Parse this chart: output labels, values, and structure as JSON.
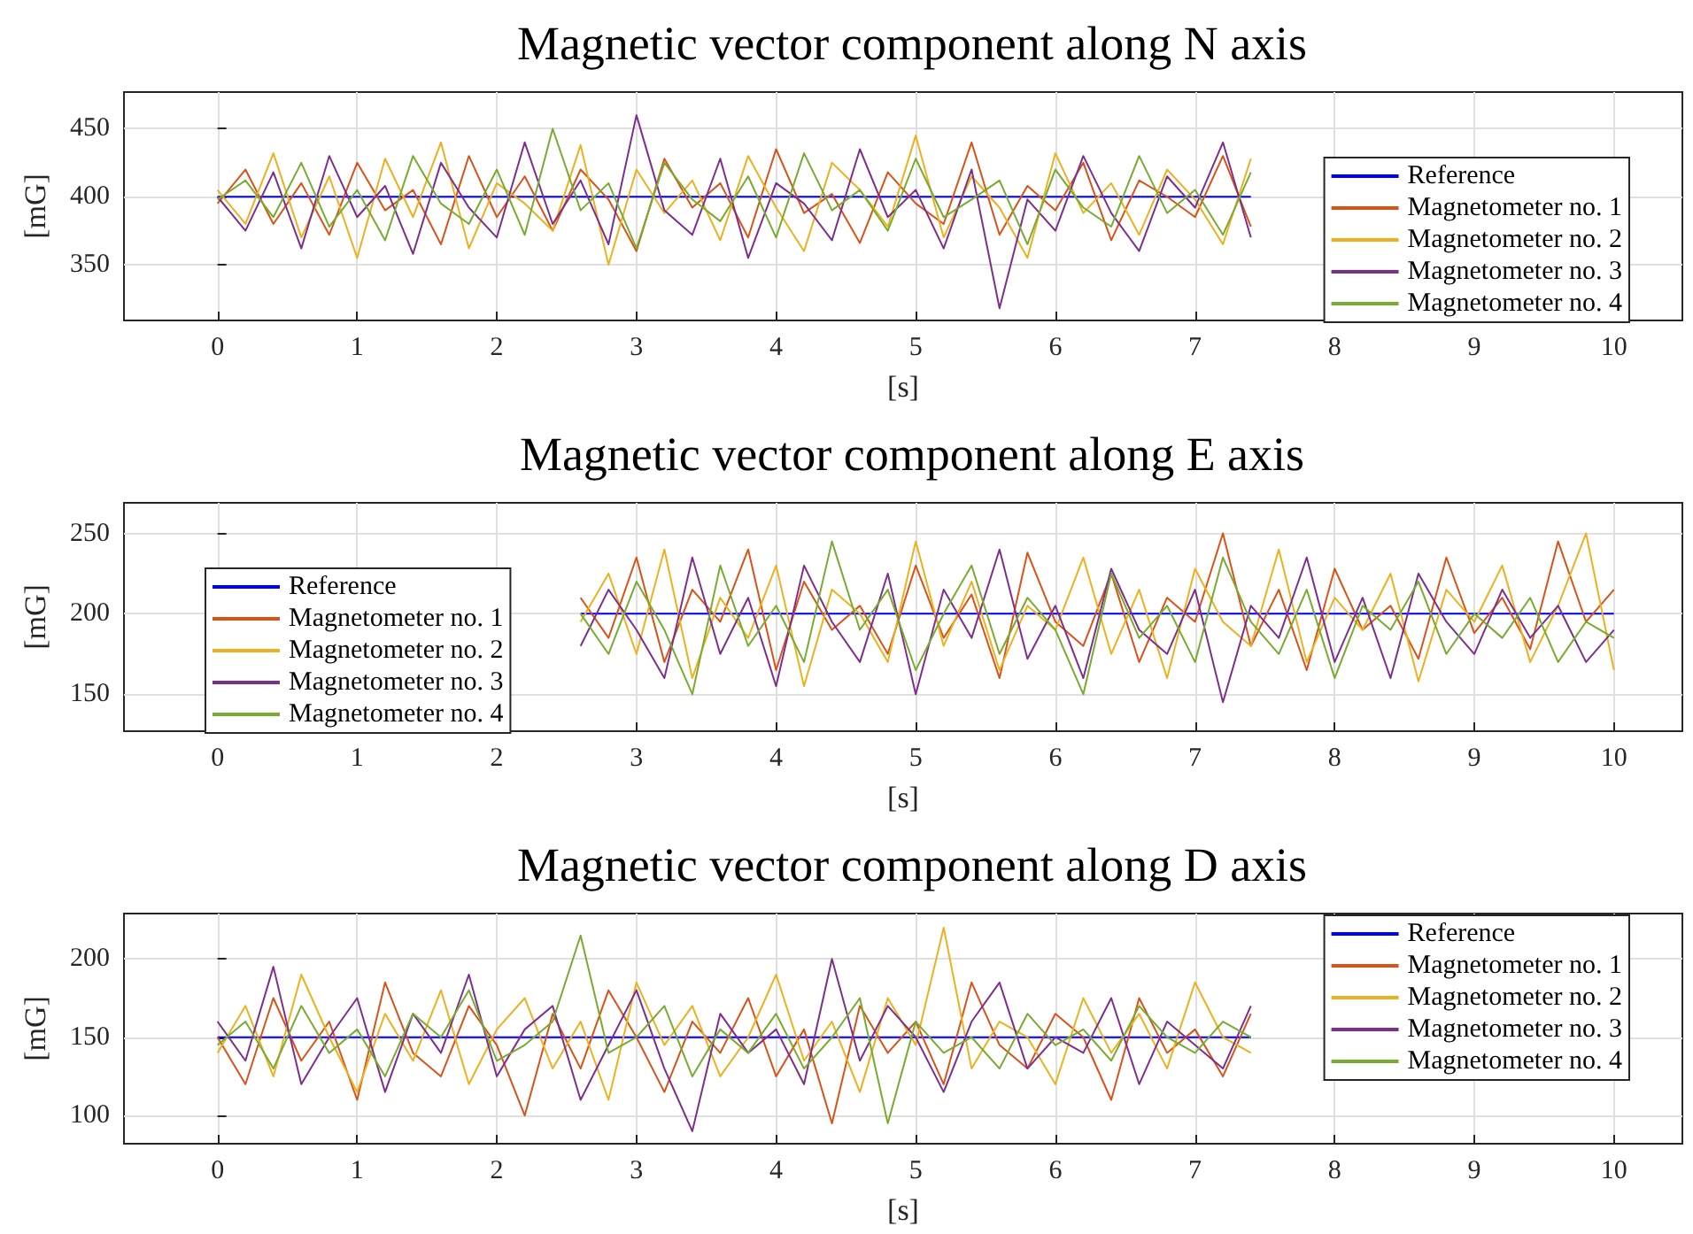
{
  "chart_data": [
    {
      "type": "line",
      "title": "Magnetic vector component along N axis",
      "xlabel": "[s]",
      "ylabel": "[mG]",
      "xlim": [
        -0.67,
        10.49
      ],
      "xticks": [
        0,
        1,
        2,
        3,
        4,
        5,
        6,
        7,
        8,
        9,
        10
      ],
      "ylim": [
        309,
        477
      ],
      "yticks": [
        350,
        400,
        450
      ],
      "grid": true,
      "legend": "bottom right",
      "marker": "none",
      "line_style": "solid",
      "x": [
        0,
        0.2,
        0.4,
        0.6,
        0.8,
        1,
        1.2,
        1.4,
        1.6,
        1.8,
        2,
        2.2,
        2.4,
        2.6,
        2.8,
        3,
        3.2,
        3.4,
        3.6,
        3.8,
        4,
        4.2,
        4.4,
        4.6,
        4.8,
        5,
        5.2,
        5.4,
        5.6,
        5.8,
        6,
        6.2,
        6.4,
        6.6,
        6.8,
        7,
        7.2,
        7.4
      ],
      "series": [
        {
          "name": "Reference",
          "color": "#0000ff",
          "x": [
            0,
            7.4
          ],
          "values": [
            400,
            400
          ]
        },
        {
          "name": "Magnetometer no. 1",
          "color": "#d95319",
          "values": [
            395,
            420,
            380,
            410,
            372,
            425,
            390,
            405,
            365,
            430,
            385,
            415,
            375,
            420,
            398,
            360,
            428,
            392,
            410,
            370,
            435,
            388,
            402,
            366,
            418,
            395,
            380,
            440,
            372,
            408,
            390,
            425,
            368,
            412,
            400,
            385,
            430,
            378
          ]
        },
        {
          "name": "Magnetometer no. 2",
          "color": "#edb120",
          "values": [
            405,
            380,
            432,
            370,
            415,
            355,
            428,
            385,
            440,
            362,
            410,
            395,
            375,
            438,
            350,
            420,
            388,
            412,
            368,
            430,
            392,
            360,
            425,
            405,
            378,
            445,
            370,
            415,
            392,
            355,
            432,
            388,
            410,
            372,
            420,
            398,
            365,
            428
          ]
        },
        {
          "name": "Magnetometer no. 3",
          "color": "#7e2f8e",
          "values": [
            400,
            375,
            418,
            362,
            430,
            385,
            408,
            358,
            425,
            392,
            370,
            440,
            380,
            412,
            365,
            460,
            390,
            372,
            428,
            355,
            410,
            395,
            368,
            435,
            385,
            405,
            362,
            420,
            318,
            398,
            375,
            430,
            388,
            360,
            415,
            392,
            440,
            370
          ]
        },
        {
          "name": "Magnetometer no. 4",
          "color": "#77ac30",
          "values": [
            398,
            412,
            385,
            425,
            378,
            405,
            368,
            430,
            395,
            380,
            420,
            372,
            450,
            390,
            410,
            362,
            425,
            398,
            382,
            415,
            370,
            432,
            390,
            405,
            375,
            428,
            385,
            398,
            412,
            365,
            420,
            392,
            378,
            430,
            388,
            405,
            372,
            418
          ]
        }
      ]
    },
    {
      "type": "line",
      "title": "Magnetic vector component along E axis",
      "xlabel": "[s]",
      "ylabel": "[mG]",
      "xlim": [
        -0.67,
        10.49
      ],
      "xticks": [
        0,
        1,
        2,
        3,
        4,
        5,
        6,
        7,
        8,
        9,
        10
      ],
      "ylim": [
        127,
        269
      ],
      "yticks": [
        150,
        200,
        250
      ],
      "grid": true,
      "legend": "bottom left",
      "marker": "none",
      "line_style": "solid",
      "x": [
        2.6,
        2.8,
        3,
        3.2,
        3.4,
        3.6,
        3.8,
        4,
        4.2,
        4.4,
        4.6,
        4.8,
        5,
        5.2,
        5.4,
        5.6,
        5.8,
        6,
        6.2,
        6.4,
        6.6,
        6.8,
        7,
        7.2,
        7.4,
        7.6,
        7.8,
        8,
        8.2,
        8.4,
        8.6,
        8.8,
        9,
        9.2,
        9.4,
        9.6,
        9.8,
        10
      ],
      "series": [
        {
          "name": "Reference",
          "color": "#0000ff",
          "x": [
            2.6,
            10
          ],
          "values": [
            200,
            200
          ]
        },
        {
          "name": "Magnetometer no. 1",
          "color": "#d95319",
          "values": [
            210,
            185,
            235,
            170,
            215,
            195,
            240,
            165,
            220,
            190,
            205,
            175,
            230,
            185,
            212,
            160,
            238,
            195,
            180,
            225,
            170,
            210,
            195,
            250,
            180,
            215,
            165,
            228,
            190,
            205,
            172,
            235,
            188,
            210,
            178,
            245,
            195,
            215
          ]
        },
        {
          "name": "Magnetometer no. 2",
          "color": "#edb120",
          "values": [
            195,
            225,
            175,
            240,
            160,
            210,
            185,
            230,
            155,
            215,
            200,
            170,
            245,
            180,
            220,
            165,
            205,
            190,
            235,
            175,
            215,
            160,
            228,
            195,
            180,
            240,
            170,
            210,
            190,
            225,
            158,
            215,
            195,
            230,
            170,
            205,
            250,
            165
          ]
        },
        {
          "name": "Magnetometer no. 3",
          "color": "#7e2f8e",
          "values": [
            180,
            215,
            190,
            160,
            235,
            175,
            210,
            155,
            230,
            195,
            170,
            225,
            150,
            215,
            185,
            240,
            172,
            205,
            160,
            228,
            190,
            175,
            215,
            145,
            205,
            185,
            235,
            170,
            210,
            160,
            225,
            195,
            175,
            215,
            185,
            205,
            170,
            190
          ]
        },
        {
          "name": "Magnetometer no. 4",
          "color": "#77ac30",
          "values": [
            200,
            175,
            220,
            190,
            150,
            230,
            180,
            205,
            170,
            245,
            190,
            215,
            165,
            200,
            230,
            175,
            210,
            190,
            150,
            225,
            185,
            205,
            170,
            235,
            195,
            175,
            215,
            160,
            205,
            190,
            220,
            175,
            200,
            185,
            210,
            170,
            195,
            185
          ]
        }
      ]
    },
    {
      "type": "line",
      "title": "Magnetic vector component along D axis",
      "xlabel": "[s]",
      "ylabel": "[mG]",
      "xlim": [
        -0.67,
        10.49
      ],
      "xticks": [
        0,
        1,
        2,
        3,
        4,
        5,
        6,
        7,
        8,
        9,
        10
      ],
      "ylim": [
        82,
        229
      ],
      "yticks": [
        100,
        150,
        200
      ],
      "grid": true,
      "legend": "top right",
      "marker": "none",
      "line_style": "solid",
      "x": [
        0,
        0.2,
        0.4,
        0.6,
        0.8,
        1,
        1.2,
        1.4,
        1.6,
        1.8,
        2,
        2.2,
        2.4,
        2.6,
        2.8,
        3,
        3.2,
        3.4,
        3.6,
        3.8,
        4,
        4.2,
        4.4,
        4.6,
        4.8,
        5,
        5.2,
        5.4,
        5.6,
        5.8,
        6,
        6.2,
        6.4,
        6.6,
        6.8,
        7,
        7.2,
        7.4
      ],
      "series": [
        {
          "name": "Reference",
          "color": "#0000ff",
          "x": [
            0,
            7.4
          ],
          "values": [
            150,
            150
          ]
        },
        {
          "name": "Magnetometer no. 1",
          "color": "#d95319",
          "values": [
            150,
            120,
            175,
            135,
            160,
            110,
            185,
            140,
            125,
            170,
            145,
            100,
            165,
            130,
            180,
            150,
            115,
            160,
            140,
            175,
            125,
            155,
            95,
            170,
            140,
            160,
            120,
            185,
            145,
            130,
            165,
            150,
            110,
            175,
            140,
            155,
            125,
            165
          ]
        },
        {
          "name": "Magnetometer no. 2",
          "color": "#edb120",
          "values": [
            140,
            170,
            125,
            190,
            150,
            115,
            165,
            135,
            180,
            120,
            155,
            175,
            130,
            160,
            110,
            185,
            145,
            170,
            125,
            150,
            190,
            135,
            160,
            115,
            175,
            145,
            220,
            130,
            160,
            150,
            120,
            175,
            140,
            165,
            130,
            185,
            150,
            140
          ]
        },
        {
          "name": "Magnetometer no. 3",
          "color": "#7e2f8e",
          "values": [
            160,
            135,
            195,
            120,
            150,
            175,
            115,
            165,
            140,
            190,
            125,
            155,
            170,
            110,
            145,
            180,
            130,
            90,
            165,
            140,
            155,
            120,
            200,
            135,
            170,
            150,
            115,
            160,
            185,
            130,
            150,
            140,
            175,
            120,
            160,
            145,
            130,
            170
          ]
        },
        {
          "name": "Magnetometer no. 4",
          "color": "#77ac30",
          "values": [
            145,
            160,
            130,
            170,
            140,
            155,
            125,
            165,
            150,
            180,
            135,
            145,
            160,
            215,
            140,
            150,
            170,
            125,
            155,
            140,
            165,
            130,
            150,
            175,
            95,
            160,
            140,
            150,
            130,
            165,
            145,
            155,
            135,
            170,
            150,
            140,
            160,
            150
          ]
        }
      ]
    }
  ]
}
